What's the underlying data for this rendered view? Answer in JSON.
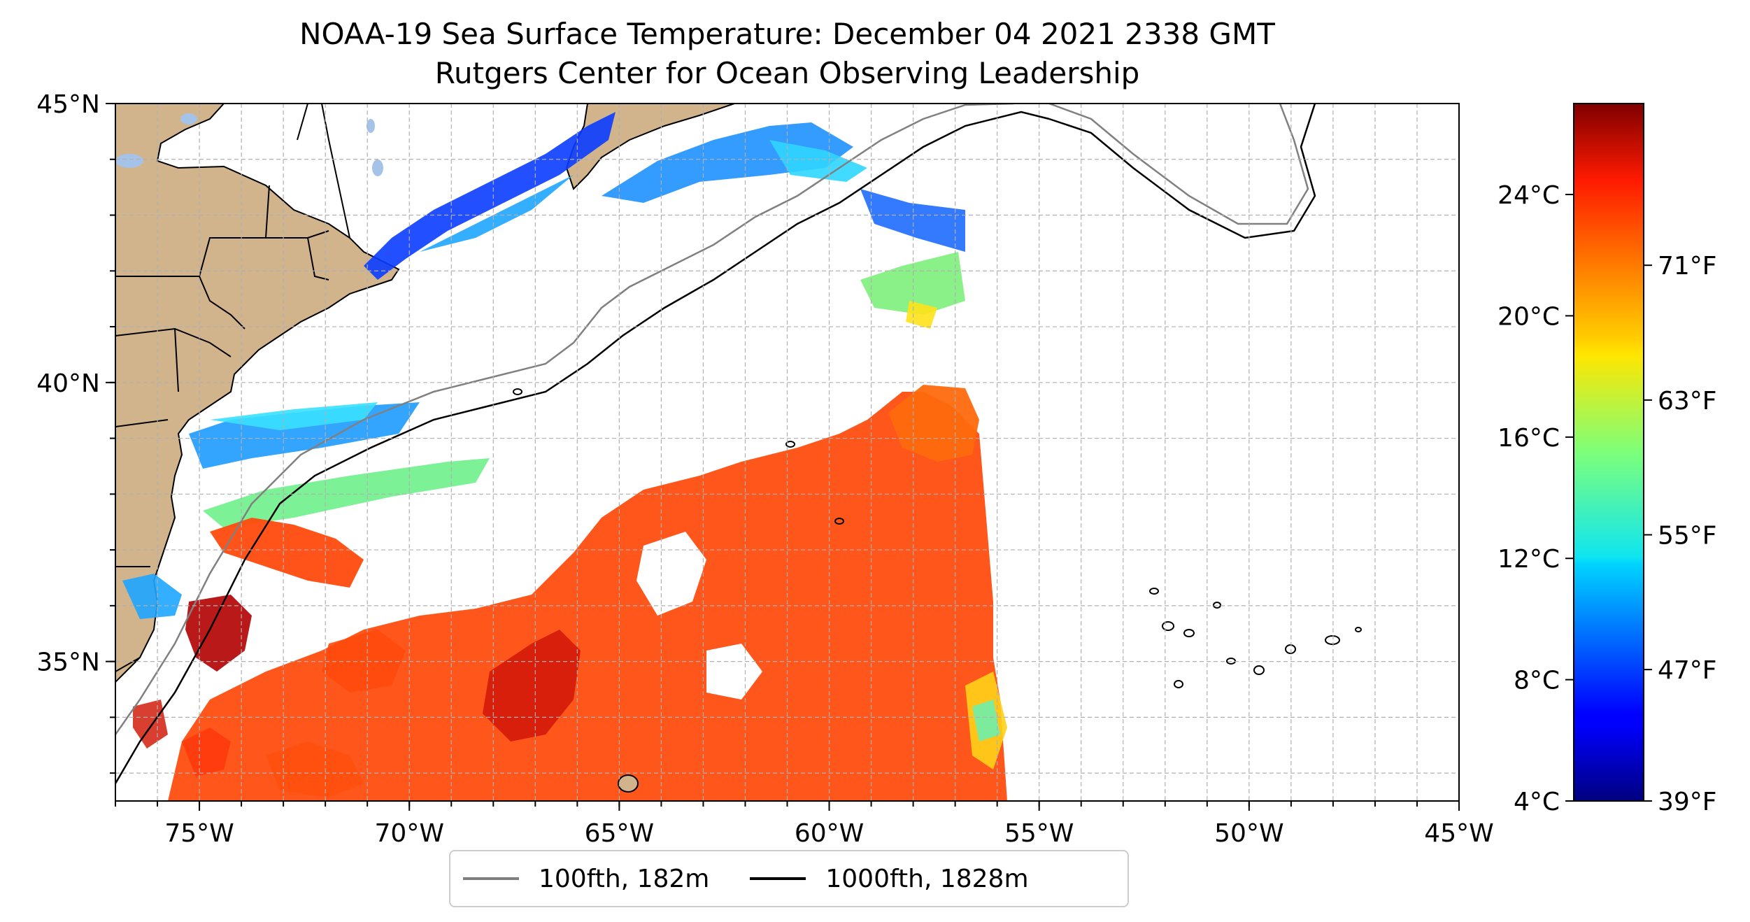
{
  "title": "NOAA-19 Sea Surface Temperature: December 04 2021 2338 GMT",
  "subtitle": "Rutgers Center for Ocean Observing Leadership",
  "map": {
    "lon_range": [
      -77,
      -45
    ],
    "lat_range": [
      32.5,
      45
    ],
    "lon_ticks": [
      {
        "value": -75,
        "label": "75°W"
      },
      {
        "value": -70,
        "label": "70°W"
      },
      {
        "value": -65,
        "label": "65°W"
      },
      {
        "value": -60,
        "label": "60°W"
      },
      {
        "value": -55,
        "label": "55°W"
      },
      {
        "value": -50,
        "label": "50°W"
      },
      {
        "value": -45,
        "label": "45°W"
      }
    ],
    "lat_ticks": [
      {
        "value": 45,
        "label": "45°N"
      },
      {
        "value": 40,
        "label": "40°N"
      },
      {
        "value": 35,
        "label": "35°N"
      }
    ],
    "grid": true,
    "colors": {
      "land": "#d2b48c",
      "lakes": "#a5c3e8",
      "isobath_100": "#808080",
      "isobath_1000": "#000000"
    }
  },
  "colorbar": {
    "colormap": "jet",
    "range_c": [
      4,
      27
    ],
    "celsius_ticks": [
      {
        "value": 4,
        "label": "4°C"
      },
      {
        "value": 8,
        "label": "8°C"
      },
      {
        "value": 12,
        "label": "12°C"
      },
      {
        "value": 16,
        "label": "16°C"
      },
      {
        "value": 20,
        "label": "20°C"
      },
      {
        "value": 24,
        "label": "24°C"
      }
    ],
    "fahrenheit_ticks": [
      {
        "value": 39,
        "label": "39°F"
      },
      {
        "value": 47,
        "label": "47°F"
      },
      {
        "value": 55,
        "label": "55°F"
      },
      {
        "value": 63,
        "label": "63°F"
      },
      {
        "value": 71,
        "label": "71°F"
      }
    ]
  },
  "legend": {
    "items": [
      {
        "label": "100fth, 182m",
        "color": "#808080"
      },
      {
        "label": "1000fth, 1828m",
        "color": "#000000"
      }
    ]
  }
}
